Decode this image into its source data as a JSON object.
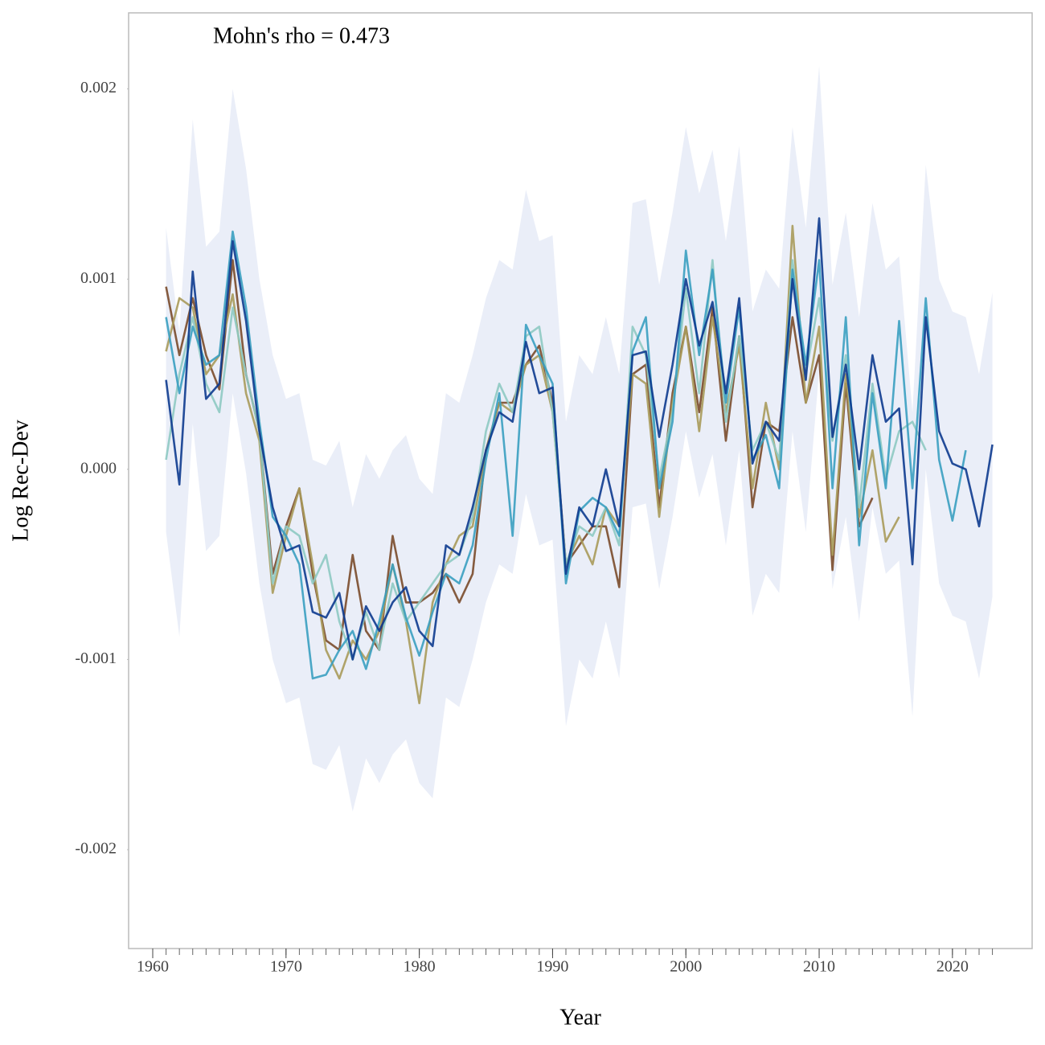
{
  "chart_data": {
    "type": "line",
    "annotation": "Mohn's rho = 0.473",
    "xlabel": "Year",
    "ylabel": "Log Rec-Dev",
    "x": [
      1961,
      1962,
      1963,
      1964,
      1965,
      1966,
      1967,
      1968,
      1969,
      1970,
      1971,
      1972,
      1973,
      1974,
      1975,
      1976,
      1977,
      1978,
      1979,
      1980,
      1981,
      1982,
      1983,
      1984,
      1985,
      1986,
      1987,
      1988,
      1989,
      1990,
      1991,
      1992,
      1993,
      1994,
      1995,
      1996,
      1997,
      1998,
      1999,
      2000,
      2001,
      2002,
      2003,
      2004,
      2005,
      2006,
      2007,
      2008,
      2009,
      2010,
      2011,
      2012,
      2013,
      2014,
      2015,
      2016,
      2017,
      2018,
      2019,
      2020,
      2021,
      2022,
      2023
    ],
    "xlim": [
      1958.19,
      2025.98
    ],
    "xticks": [
      1960,
      1970,
      1980,
      1990,
      2000,
      2010,
      2020
    ],
    "xminorticks": [
      1960,
      1961,
      1962,
      1963,
      1964,
      1965,
      1966,
      1967,
      1968,
      1969,
      1970,
      1971,
      1972,
      1973,
      1974,
      1975,
      1976,
      1977,
      1978,
      1979,
      1980,
      1981,
      1982,
      1983,
      1984,
      1985,
      1986,
      1987,
      1988,
      1989,
      1990,
      1991,
      1992,
      1993,
      1994,
      1995,
      1996,
      1997,
      1998,
      1999,
      2000,
      2001,
      2002,
      2003,
      2004,
      2005,
      2006,
      2007,
      2008,
      2009,
      2010,
      2011,
      2012,
      2013,
      2014,
      2015,
      2016,
      2017,
      2018,
      2019,
      2020,
      2021,
      2022,
      2023
    ],
    "ylim": [
      -0.00252,
      0.0024
    ],
    "yticks": [
      -0.002,
      -0.001,
      {
        "value": 0,
        "label": "0.000"
      },
      0.001,
      0.002
    ],
    "ribbon": {
      "color": "#6f8fcf",
      "upper": [
        0.00127,
        0.00072,
        0.00184,
        0.00117,
        0.00125,
        0.002,
        0.00158,
        0.001,
        0.0006,
        0.00037,
        0.0004,
        5e-05,
        2e-05,
        0.00015,
        -0.0002,
        8e-05,
        -5e-05,
        0.0001,
        0.00018,
        -5e-05,
        -0.00013,
        0.0004,
        0.00035,
        0.0006,
        0.0009,
        0.0011,
        0.00105,
        0.00147,
        0.0012,
        0.00123,
        0.00025,
        0.0006,
        0.0005,
        0.0008,
        0.0005,
        0.0014,
        0.00142,
        0.00097,
        0.00135,
        0.0018,
        0.00145,
        0.00168,
        0.0012,
        0.0017,
        0.00083,
        0.00105,
        0.00095,
        0.0018,
        0.00127,
        0.00212,
        0.00097,
        0.00135,
        0.0008,
        0.0014,
        0.00105,
        0.00112,
        0.0003,
        0.0016,
        0.001,
        0.00083,
        0.0008,
        0.0005,
        0.00093
      ],
      "lower": [
        -0.00033,
        -0.00088,
        0.00024,
        -0.00043,
        -0.00035,
        0.0004,
        -2e-05,
        -0.0006,
        -0.001,
        -0.00123,
        -0.0012,
        -0.00155,
        -0.00158,
        -0.00145,
        -0.0018,
        -0.00152,
        -0.00165,
        -0.0015,
        -0.00142,
        -0.00165,
        -0.00173,
        -0.0012,
        -0.00125,
        -0.001,
        -0.0007,
        -0.0005,
        -0.00055,
        -0.00013,
        -0.0004,
        -0.00037,
        -0.00135,
        -0.001,
        -0.0011,
        -0.0008,
        -0.0011,
        -0.0002,
        -0.00018,
        -0.00063,
        -0.00025,
        0.0002,
        -0.00015,
        8e-05,
        -0.0004,
        0.0001,
        -0.00077,
        -0.00055,
        -0.00065,
        0.0002,
        -0.00033,
        0.00052,
        -0.00063,
        -0.00025,
        -0.0008,
        -0.0002,
        -0.00055,
        -0.00048,
        -0.0013,
        0.0,
        -0.0006,
        -0.00077,
        -0.0008,
        -0.0011,
        -0.00067
      ]
    },
    "series": [
      {
        "color": "#7a4a2a",
        "values": [
          0.00096,
          0.0006,
          0.0009,
          0.0006,
          0.00042,
          0.0011,
          0.0005,
          0.0002,
          -0.00055,
          -0.0003,
          -0.0001,
          -0.00055,
          -0.0009,
          -0.00095,
          -0.00045,
          -0.00085,
          -0.00095,
          -0.00035,
          -0.0007,
          -0.0007,
          -0.00065,
          -0.00055,
          -0.0007,
          -0.00055,
          0.0001,
          0.00035,
          0.00035,
          0.00055,
          0.00065,
          0.00035,
          -0.0005,
          -0.0004,
          -0.0003,
          -0.0003,
          -0.00062,
          0.0005,
          0.00055,
          -0.0002,
          0.0004,
          0.00075,
          0.0003,
          0.00085,
          0.00015,
          0.0007,
          -0.0002,
          0.00025,
          0.0002,
          0.0008,
          0.00035,
          0.0006,
          -0.00053,
          0.00045,
          -0.0003,
          -0.00015,
          null,
          null,
          null,
          null,
          null,
          null,
          null,
          null,
          null
        ]
      },
      {
        "color": "#a89a5a",
        "values": [
          0.00062,
          0.0009,
          0.00085,
          0.0005,
          0.0006,
          0.00092,
          0.0004,
          0.00015,
          -0.00065,
          -0.00035,
          -0.0001,
          -0.0005,
          -0.00095,
          -0.0011,
          -0.0009,
          -0.001,
          -0.00085,
          -0.0005,
          -0.0008,
          -0.00123,
          -0.0007,
          -0.0005,
          -0.00035,
          -0.0003,
          0.0001,
          0.00035,
          0.0003,
          0.00055,
          0.0006,
          0.0003,
          -0.0005,
          -0.00035,
          -0.0005,
          -0.0002,
          -0.0003,
          0.0005,
          0.00045,
          -0.00025,
          0.00035,
          0.00075,
          0.0002,
          0.0008,
          0.0003,
          0.00065,
          -0.0001,
          0.00035,
          0.0,
          0.00128,
          0.00035,
          0.00075,
          -0.00045,
          0.0005,
          -0.00025,
          0.0001,
          -0.00038,
          -0.00025,
          null,
          null,
          null,
          null,
          null,
          null,
          null
        ]
      },
      {
        "color": "#8ec9c2",
        "values": [
          5e-05,
          0.0005,
          0.0008,
          0.00045,
          0.0003,
          0.00085,
          0.0005,
          0.0002,
          -0.0006,
          -0.0003,
          -0.00035,
          -0.0006,
          -0.00045,
          -0.0008,
          -0.001,
          -0.00075,
          -0.00095,
          -0.0006,
          -0.0008,
          -0.0007,
          -0.0006,
          -0.0005,
          -0.00045,
          -0.00025,
          0.0002,
          0.00045,
          0.0003,
          0.0007,
          0.00075,
          0.0003,
          -0.0005,
          -0.0003,
          -0.00035,
          -0.0002,
          -0.0004,
          0.00075,
          0.0006,
          -5e-05,
          0.0003,
          0.00095,
          0.0004,
          0.0011,
          0.00025,
          0.0007,
          0.0001,
          0.00025,
          5e-05,
          0.0011,
          0.0005,
          0.0009,
          0.00015,
          0.0006,
          -0.0002,
          0.00045,
          -5e-05,
          0.0002,
          0.00025,
          0.0001,
          null,
          null,
          null,
          null,
          null
        ]
      },
      {
        "color": "#3a9ec0",
        "values": [
          0.0008,
          0.0004,
          0.00075,
          0.00055,
          0.0006,
          0.00125,
          0.00085,
          0.00025,
          -0.00025,
          -0.00035,
          -0.0005,
          -0.0011,
          -0.00108,
          -0.00095,
          -0.00085,
          -0.00105,
          -0.0008,
          -0.0005,
          -0.00078,
          -0.00098,
          -0.00075,
          -0.00055,
          -0.0006,
          -0.0004,
          5e-05,
          0.0004,
          -0.00035,
          0.00076,
          0.0006,
          0.00045,
          -0.0006,
          -0.00022,
          -0.00015,
          -0.0002,
          -0.00035,
          0.00062,
          0.0008,
          -0.0001,
          0.00025,
          0.00115,
          0.0006,
          0.00105,
          0.00035,
          0.00085,
          5e-05,
          0.00018,
          -0.0001,
          0.00105,
          0.00055,
          0.0011,
          -0.0001,
          0.0008,
          -0.0004,
          0.0004,
          -0.0001,
          0.00078,
          -0.0001,
          0.0009,
          5e-05,
          -0.00027,
          0.0001,
          null,
          null
        ]
      },
      {
        "color": "#0d3a8e",
        "values": [
          0.00047,
          -8e-05,
          0.00104,
          0.00037,
          0.00045,
          0.0012,
          0.00078,
          0.0002,
          -0.0002,
          -0.00043,
          -0.0004,
          -0.00075,
          -0.00078,
          -0.00065,
          -0.001,
          -0.00072,
          -0.00085,
          -0.0007,
          -0.00062,
          -0.00085,
          -0.00093,
          -0.0004,
          -0.00045,
          -0.0002,
          0.0001,
          0.0003,
          0.00025,
          0.00067,
          0.0004,
          0.00043,
          -0.00055,
          -0.0002,
          -0.0003,
          0.0,
          -0.0003,
          0.0006,
          0.00062,
          0.00017,
          0.00055,
          0.001,
          0.00065,
          0.00088,
          0.0004,
          0.0009,
          3e-05,
          0.00025,
          0.00015,
          0.001,
          0.00047,
          0.00132,
          0.00017,
          0.00055,
          0.0,
          0.0006,
          0.00025,
          0.00032,
          -0.0005,
          0.0008,
          0.0002,
          3e-05,
          0.0,
          -0.0003,
          0.00013
        ]
      }
    ]
  }
}
